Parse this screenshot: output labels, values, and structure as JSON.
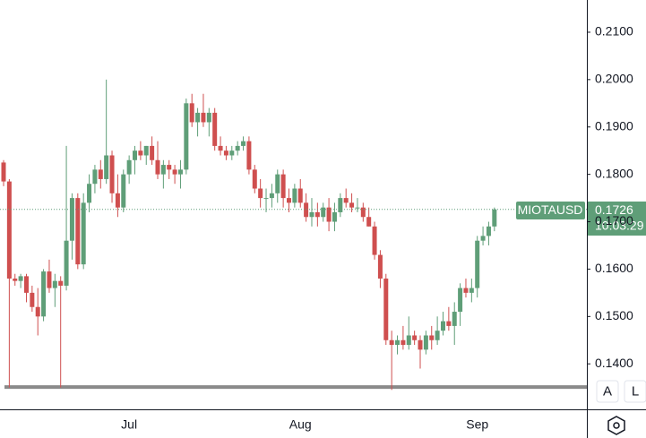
{
  "chart_data": {
    "type": "candlestick",
    "symbol": "MIOTAUSD",
    "countdown": "10:03:29",
    "buttons": [
      "A",
      "L"
    ],
    "up_color": "#5f9e78",
    "down_color": "#cf4f4f",
    "ylim": [
      0.1304,
      0.2168
    ],
    "yticks": [
      {
        "value": 0.14,
        "label": "0.1400"
      },
      {
        "value": 0.15,
        "label": "0.1500"
      },
      {
        "value": 0.16,
        "label": "0.1600"
      },
      {
        "value": 0.17,
        "label": "0.1700"
      },
      {
        "value": 0.18,
        "label": "0.1800"
      },
      {
        "value": 0.19,
        "label": "0.1900"
      },
      {
        "value": 0.2,
        "label": "0.2000"
      },
      {
        "value": 0.21,
        "label": "0.2100"
      }
    ],
    "support_line": 0.1351,
    "categories": [
      null,
      null,
      null,
      null,
      null,
      null,
      null,
      null,
      null,
      null,
      null,
      null,
      null,
      null,
      null,
      null,
      null,
      null,
      null,
      null,
      null,
      null,
      "Jul",
      null,
      null,
      null,
      null,
      null,
      null,
      null,
      null,
      null,
      null,
      null,
      null,
      null,
      null,
      null,
      null,
      null,
      null,
      null,
      null,
      null,
      null,
      null,
      null,
      null,
      null,
      null,
      null,
      null,
      "Aug",
      null,
      null,
      null,
      null,
      null,
      null,
      null,
      null,
      null,
      null,
      null,
      null,
      null,
      null,
      null,
      null,
      null,
      null,
      null,
      null,
      null,
      null,
      null,
      null,
      null,
      null,
      null,
      null,
      null,
      null,
      "Sep",
      null,
      null,
      null
    ],
    "open": [
      0.1825,
      0.1785,
      0.158,
      0.1575,
      0.1585,
      0.155,
      0.152,
      0.15,
      0.1595,
      0.156,
      0.1575,
      0.1565,
      0.166,
      0.175,
      0.161,
      0.174,
      0.178,
      0.181,
      0.179,
      0.184,
      0.176,
      0.173,
      0.18,
      0.183,
      0.185,
      0.184,
      0.186,
      0.183,
      0.18,
      0.182,
      0.181,
      0.18,
      0.181,
      0.195,
      0.191,
      0.193,
      0.191,
      0.193,
      0.186,
      0.185,
      0.184,
      0.185,
      0.186,
      0.187,
      0.181,
      0.177,
      0.175,
      0.175,
      0.176,
      0.18,
      0.175,
      0.174,
      0.177,
      0.174,
      0.171,
      0.172,
      0.171,
      0.173,
      0.17,
      0.172,
      0.175,
      0.174,
      0.173,
      0.173,
      0.171,
      0.169,
      0.163,
      0.158,
      0.145,
      0.144,
      0.145,
      0.144,
      0.146,
      0.145,
      0.143,
      0.146,
      0.145,
      0.147,
      0.149,
      0.148,
      0.151,
      0.156,
      0.155,
      0.156,
      0.166,
      0.167,
      0.169
    ],
    "high": [
      0.183,
      0.179,
      0.159,
      0.159,
      0.159,
      0.1565,
      0.156,
      0.16,
      0.162,
      0.159,
      0.1585,
      0.186,
      0.176,
      0.176,
      0.176,
      0.18,
      0.182,
      0.183,
      0.2,
      0.185,
      0.18,
      0.181,
      0.184,
      0.186,
      0.187,
      0.186,
      0.188,
      0.187,
      0.183,
      0.183,
      0.182,
      0.183,
      0.196,
      0.197,
      0.194,
      0.197,
      0.194,
      0.194,
      0.188,
      0.186,
      0.186,
      0.187,
      0.188,
      0.188,
      0.182,
      0.179,
      0.177,
      0.178,
      0.181,
      0.181,
      0.177,
      0.178,
      0.179,
      0.176,
      0.175,
      0.174,
      0.174,
      0.175,
      0.174,
      0.176,
      0.177,
      0.176,
      0.175,
      0.174,
      0.173,
      0.17,
      0.164,
      0.159,
      0.147,
      0.146,
      0.148,
      0.15,
      0.147,
      0.146,
      0.147,
      0.148,
      0.15,
      0.151,
      0.152,
      0.153,
      0.157,
      0.158,
      0.158,
      0.167,
      0.169,
      0.17,
      0.173
    ],
    "low": [
      0.1775,
      0.135,
      0.1565,
      0.156,
      0.153,
      0.151,
      0.146,
      0.149,
      0.155,
      0.152,
      0.135,
      0.1555,
      0.162,
      0.16,
      0.16,
      0.172,
      0.176,
      0.177,
      0.178,
      0.174,
      0.171,
      0.172,
      0.178,
      0.18,
      0.183,
      0.182,
      0.182,
      0.179,
      0.177,
      0.179,
      0.178,
      0.177,
      0.18,
      0.19,
      0.188,
      0.19,
      0.188,
      0.185,
      0.184,
      0.183,
      0.183,
      0.184,
      0.185,
      0.18,
      0.176,
      0.173,
      0.172,
      0.173,
      0.174,
      0.173,
      0.172,
      0.173,
      0.173,
      0.17,
      0.169,
      0.169,
      0.17,
      0.168,
      0.168,
      0.171,
      0.173,
      0.172,
      0.172,
      0.17,
      0.169,
      0.162,
      0.156,
      0.144,
      0.1345,
      0.142,
      0.143,
      0.143,
      0.144,
      0.139,
      0.142,
      0.143,
      0.144,
      0.146,
      0.147,
      0.144,
      0.148,
      0.154,
      0.153,
      0.154,
      0.165,
      0.165,
      0.168
    ],
    "close": [
      0.1785,
      0.158,
      0.1575,
      0.1585,
      0.155,
      0.152,
      0.15,
      0.1595,
      0.156,
      0.1575,
      0.1565,
      0.166,
      0.175,
      0.161,
      0.174,
      0.178,
      0.181,
      0.179,
      0.184,
      0.176,
      0.173,
      0.18,
      0.183,
      0.185,
      0.184,
      0.186,
      0.183,
      0.18,
      0.182,
      0.181,
      0.18,
      0.181,
      0.195,
      0.191,
      0.193,
      0.191,
      0.193,
      0.186,
      0.185,
      0.184,
      0.185,
      0.186,
      0.187,
      0.181,
      0.177,
      0.175,
      0.175,
      0.176,
      0.18,
      0.175,
      0.174,
      0.177,
      0.174,
      0.171,
      0.172,
      0.171,
      0.173,
      0.17,
      0.172,
      0.175,
      0.174,
      0.173,
      0.173,
      0.171,
      0.169,
      0.163,
      0.158,
      0.145,
      0.144,
      0.145,
      0.144,
      0.146,
      0.145,
      0.143,
      0.146,
      0.145,
      0.147,
      0.149,
      0.148,
      0.151,
      0.156,
      0.155,
      0.156,
      0.166,
      0.167,
      0.169,
      0.1726
    ]
  }
}
